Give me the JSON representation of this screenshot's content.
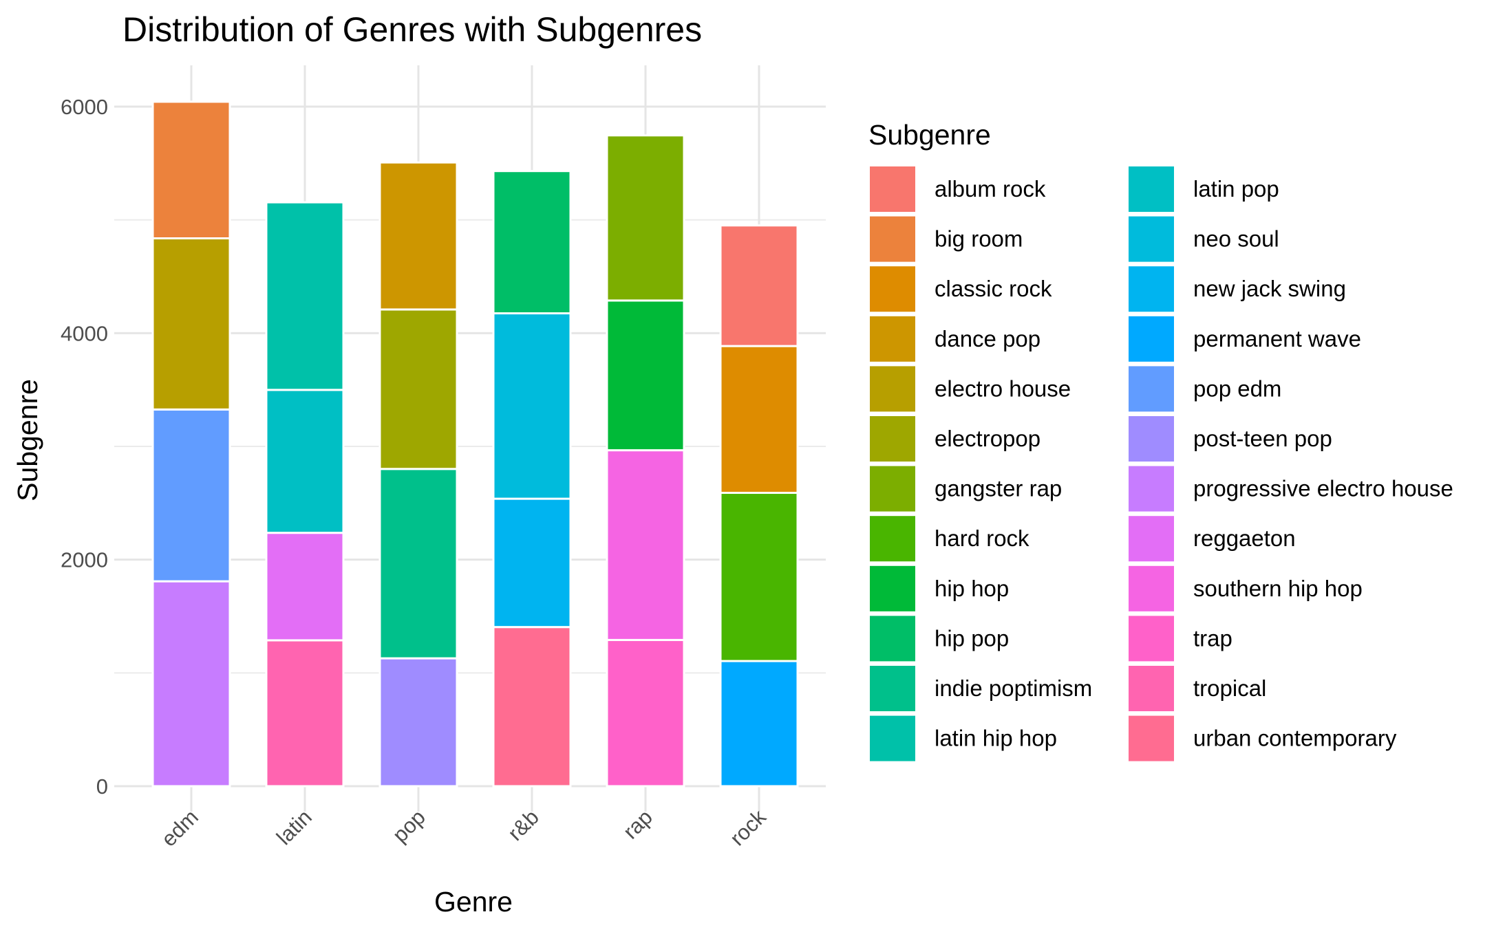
{
  "chart_data": {
    "type": "bar",
    "stacked": true,
    "title": "Distribution of Genres with Subgenres",
    "xlabel": "Genre",
    "ylabel": "Subgenre",
    "ylim": [
      0,
      6400
    ],
    "y_ticks": [
      0,
      2000,
      4000,
      6000
    ],
    "grid": true,
    "legend_title": "Subgenre",
    "legend_position": "right",
    "categories": [
      "edm",
      "latin",
      "pop",
      "r&b",
      "rap",
      "rock"
    ],
    "legend": [
      {
        "name": "album rock",
        "color": "#F8766D"
      },
      {
        "name": "big room",
        "color": "#EC823C"
      },
      {
        "name": "classic rock",
        "color": "#DE8C00"
      },
      {
        "name": "dance pop",
        "color": "#CD9600"
      },
      {
        "name": "electro house",
        "color": "#B79F00"
      },
      {
        "name": "electropop",
        "color": "#9EA700"
      },
      {
        "name": "gangster rap",
        "color": "#7CAE00"
      },
      {
        "name": "hard rock",
        "color": "#49B500"
      },
      {
        "name": "hip hop",
        "color": "#00BA38"
      },
      {
        "name": "hip pop",
        "color": "#00BE67"
      },
      {
        "name": "indie poptimism",
        "color": "#00C08B"
      },
      {
        "name": "latin hip hop",
        "color": "#00C1A9"
      },
      {
        "name": "latin pop",
        "color": "#00BFC4"
      },
      {
        "name": "neo soul",
        "color": "#00BBDC"
      },
      {
        "name": "new jack swing",
        "color": "#00B4F0"
      },
      {
        "name": "permanent wave",
        "color": "#00A9FF"
      },
      {
        "name": "pop edm",
        "color": "#619CFF"
      },
      {
        "name": "post-teen pop",
        "color": "#9F8CFF"
      },
      {
        "name": "progressive electro house",
        "color": "#C77CFF"
      },
      {
        "name": "reggaeton",
        "color": "#E36EF6"
      },
      {
        "name": "southern hip hop",
        "color": "#F564E3"
      },
      {
        "name": "trap",
        "color": "#FF61C9"
      },
      {
        "name": "tropical",
        "color": "#FF64B0"
      },
      {
        "name": "urban contemporary",
        "color": "#FF6C91"
      }
    ],
    "stacks": [
      {
        "category": "edm",
        "segments": [
          {
            "name": "progressive electro house",
            "value": 1809
          },
          {
            "name": "pop edm",
            "value": 1517
          },
          {
            "name": "electro house",
            "value": 1511
          },
          {
            "name": "big room",
            "value": 1206
          }
        ]
      },
      {
        "category": "latin",
        "segments": [
          {
            "name": "tropical",
            "value": 1288
          },
          {
            "name": "reggaeton",
            "value": 949
          },
          {
            "name": "latin pop",
            "value": 1262
          },
          {
            "name": "latin hip hop",
            "value": 1656
          }
        ]
      },
      {
        "category": "pop",
        "segments": [
          {
            "name": "post-teen pop",
            "value": 1129
          },
          {
            "name": "indie poptimism",
            "value": 1672
          },
          {
            "name": "electropop",
            "value": 1408
          },
          {
            "name": "dance pop",
            "value": 1298
          }
        ]
      },
      {
        "category": "r&b",
        "segments": [
          {
            "name": "urban contemporary",
            "value": 1405
          },
          {
            "name": "new jack swing",
            "value": 1133
          },
          {
            "name": "neo soul",
            "value": 1637
          },
          {
            "name": "hip pop",
            "value": 1256
          }
        ]
      },
      {
        "category": "rap",
        "segments": [
          {
            "name": "trap",
            "value": 1291
          },
          {
            "name": "southern hip hop",
            "value": 1675
          },
          {
            "name": "hip hop",
            "value": 1322
          },
          {
            "name": "gangster rap",
            "value": 1458
          }
        ]
      },
      {
        "category": "rock",
        "segments": [
          {
            "name": "permanent wave",
            "value": 1105
          },
          {
            "name": "hard rock",
            "value": 1485
          },
          {
            "name": "classic rock",
            "value": 1296
          },
          {
            "name": "album rock",
            "value": 1065
          }
        ]
      }
    ]
  }
}
